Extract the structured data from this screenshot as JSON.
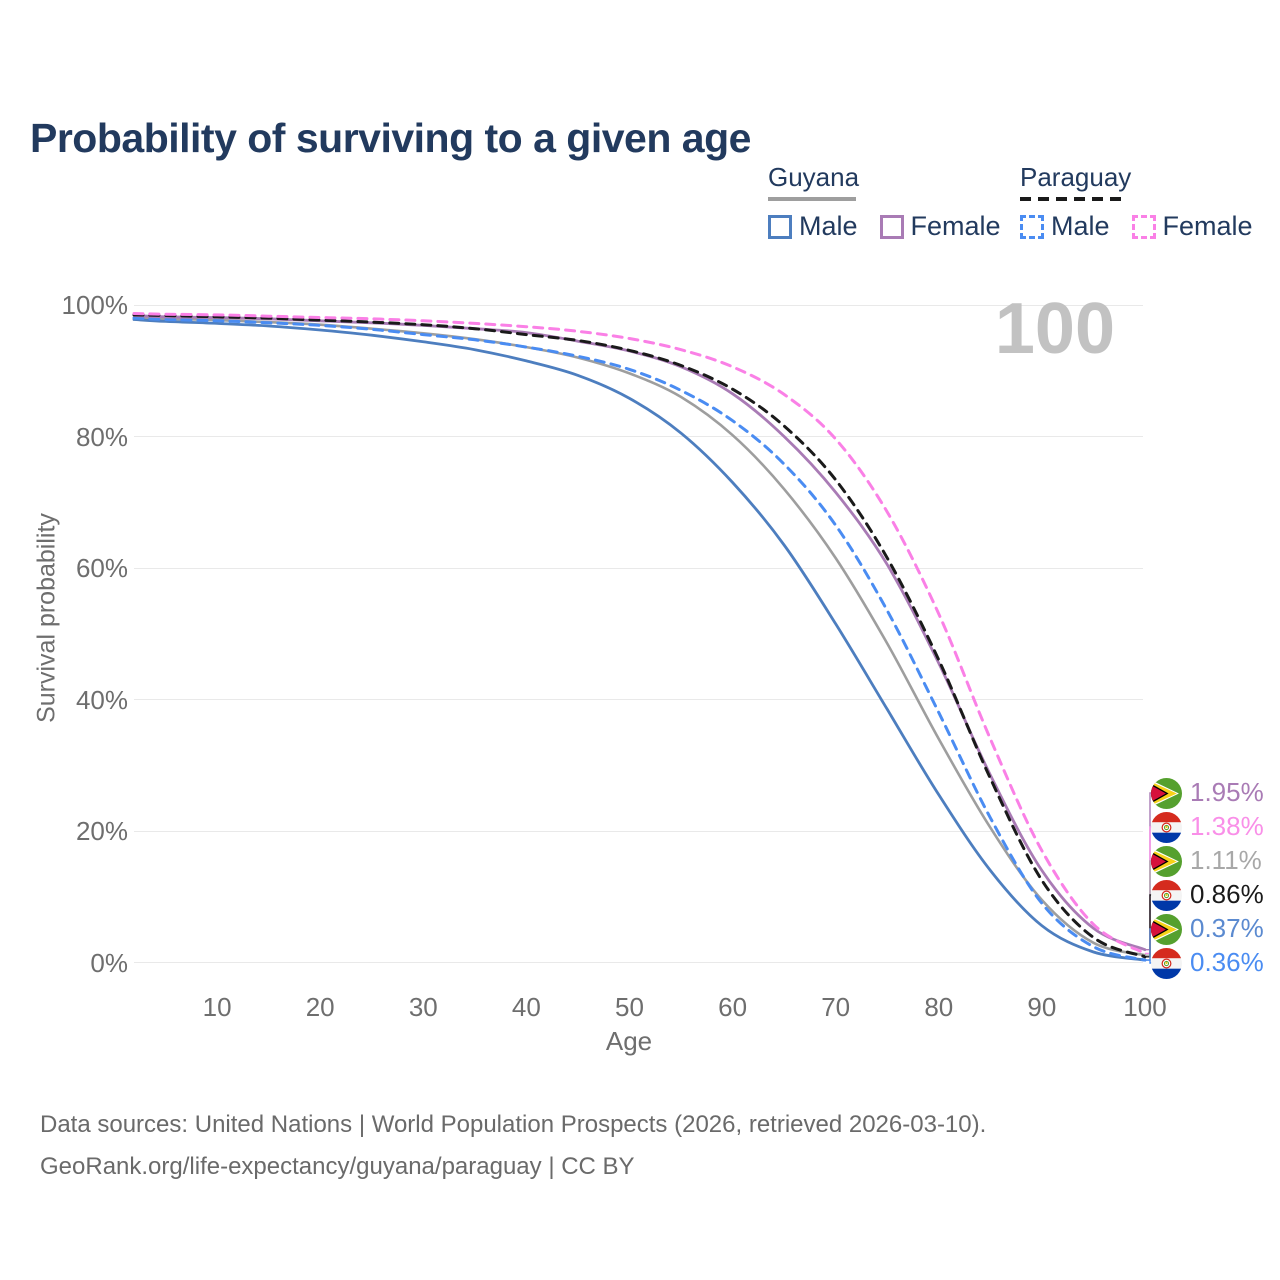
{
  "title": "Probability of surviving to a given age",
  "watermark_age": "100",
  "legend": {
    "groups": [
      {
        "name": "Guyana",
        "line_style": "solid",
        "underline_color": "#9e9e9e",
        "items": [
          {
            "id": "guyana-male",
            "label": "Male",
            "color": "#4d7ebf",
            "dashed": false
          },
          {
            "id": "guyana-female",
            "label": "Female",
            "color": "#a97bb5",
            "dashed": false
          }
        ]
      },
      {
        "name": "Paraguay",
        "line_style": "dashed",
        "underline_color": "#1a1a1a",
        "items": [
          {
            "id": "paraguay-male",
            "label": "Male",
            "color": "#4a8cf2",
            "dashed": true
          },
          {
            "id": "paraguay-female",
            "label": "Female",
            "color": "#fa80e6",
            "dashed": true
          }
        ]
      }
    ]
  },
  "chart_data": {
    "type": "line",
    "title": "Probability of surviving to a given age",
    "xlabel": "Age",
    "ylabel": "Survival probability",
    "x_ticks": [
      10,
      20,
      30,
      40,
      50,
      60,
      70,
      80,
      90,
      100
    ],
    "y_ticks_percent": [
      0,
      20,
      40,
      60,
      80,
      100
    ],
    "xlim": [
      0,
      100
    ],
    "ylim": [
      0,
      100
    ],
    "grid": true,
    "ages": [
      0,
      5,
      10,
      15,
      20,
      25,
      30,
      35,
      40,
      45,
      50,
      55,
      60,
      65,
      70,
      75,
      80,
      85,
      90,
      95,
      100
    ],
    "series": [
      {
        "id": "guyana-all",
        "name": "Guyana (both sexes)",
        "country": "guyana",
        "color": "#9e9e9e",
        "dashed": false,
        "width": 2.6,
        "values": [
          98.1,
          97.9,
          97.7,
          97.4,
          97.0,
          96.4,
          95.7,
          94.8,
          93.6,
          92.0,
          89.6,
          86.0,
          80.2,
          72.0,
          61.5,
          48.5,
          34.0,
          20.5,
          9.5,
          3.0,
          1.11
        ]
      },
      {
        "id": "guyana-male",
        "name": "Guyana Male",
        "country": "guyana",
        "color": "#4d7ebf",
        "dashed": false,
        "width": 2.8,
        "values": [
          97.8,
          97.5,
          97.2,
          96.8,
          96.2,
          95.4,
          94.4,
          93.2,
          91.5,
          89.3,
          85.8,
          80.5,
          73.0,
          63.5,
          51.5,
          38.5,
          25.5,
          14.0,
          5.6,
          1.6,
          0.37
        ]
      },
      {
        "id": "paraguay-male",
        "name": "Paraguay Male",
        "country": "paraguay",
        "color": "#4a8cf2",
        "dashed": true,
        "width": 3,
        "values": [
          98.0,
          97.8,
          97.6,
          97.3,
          96.9,
          96.3,
          95.5,
          94.7,
          93.6,
          92.2,
          90.2,
          87.0,
          82.4,
          75.8,
          66.5,
          53.5,
          38.0,
          22.0,
          9.0,
          2.4,
          0.36
        ]
      },
      {
        "id": "guyana-female",
        "name": "Guyana Female",
        "country": "guyana",
        "color": "#a97bb5",
        "dashed": false,
        "width": 2.8,
        "values": [
          98.4,
          98.2,
          98.1,
          97.9,
          97.6,
          97.3,
          96.9,
          96.4,
          95.8,
          94.5,
          93.0,
          90.6,
          86.5,
          80.0,
          71.5,
          60.5,
          45.5,
          28.5,
          14.0,
          5.2,
          1.95
        ]
      },
      {
        "id": "paraguay-all",
        "name": "Paraguay (both sexes)",
        "country": "paraguay",
        "color": "#1a1a1a",
        "dashed": true,
        "width": 3,
        "values": [
          98.5,
          98.4,
          98.2,
          98.0,
          97.7,
          97.4,
          97.0,
          96.4,
          95.5,
          94.6,
          93.1,
          90.8,
          87.2,
          81.6,
          73.4,
          61.5,
          46.0,
          28.0,
          12.5,
          3.8,
          0.86
        ]
      },
      {
        "id": "paraguay-female",
        "name": "Paraguay Female",
        "country": "paraguay",
        "color": "#fa80e6",
        "dashed": true,
        "width": 3,
        "values": [
          98.7,
          98.6,
          98.5,
          98.3,
          98.1,
          97.9,
          97.6,
          97.2,
          96.7,
          96.0,
          94.9,
          93.2,
          90.6,
          86.4,
          79.6,
          68.5,
          53.0,
          34.0,
          17.0,
          5.8,
          1.38
        ]
      }
    ],
    "end_labels": [
      {
        "series_id": "guyana-female",
        "flag": "guyana",
        "text": "1.95%",
        "color": "#a97bb5"
      },
      {
        "series_id": "paraguay-female",
        "flag": "paraguay",
        "text": "1.38%",
        "color": "#f98fe8"
      },
      {
        "series_id": "guyana-all",
        "flag": "guyana",
        "text": "1.11%",
        "color": "#a8a8a8"
      },
      {
        "series_id": "paraguay-all",
        "flag": "paraguay",
        "text": "0.86%",
        "color": "#1a1a1a"
      },
      {
        "series_id": "guyana-male",
        "flag": "guyana",
        "text": "0.37%",
        "color": "#5b8ad0"
      },
      {
        "series_id": "paraguay-male",
        "flag": "paraguay",
        "text": "0.36%",
        "color": "#4a8cf2"
      }
    ],
    "legend_position": "top-right"
  },
  "footer": {
    "line1": "Data sources: United Nations | World Population Prospects (2026, retrieved 2026-03-10).",
    "line2": "GeoRank.org/life-expectancy/guyana/paraguay | CC BY"
  }
}
